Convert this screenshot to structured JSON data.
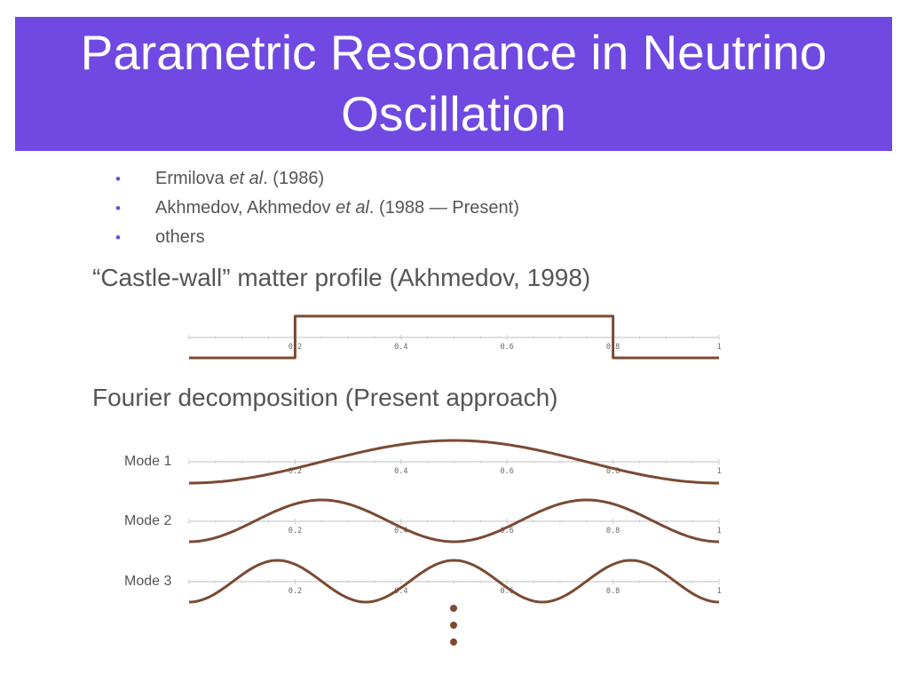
{
  "slide": {
    "title": "Parametric Resonance in Neutrino Oscillation",
    "bullets": [
      {
        "pre": "Ermilova ",
        "italic": "et al",
        "post": ". (1986)"
      },
      {
        "pre": "Akhmedov, Akhmedov ",
        "italic": "et al",
        "post": ". (1988 — Present)"
      },
      {
        "pre": "others",
        "italic": "",
        "post": ""
      }
    ],
    "castle_heading": "“Castle-wall” matter profile (Akhmedov, 1998)",
    "fourier_heading": "Fourier decomposition (Present approach)",
    "modes": [
      "Mode 1",
      "Mode 2",
      "Mode 3"
    ]
  },
  "chart_data": [
    {
      "type": "line",
      "description": "Castle-wall step profile",
      "x_ticks": [
        "0.2",
        "0.4",
        "0.6",
        "0.8",
        "1"
      ],
      "xlim": [
        0,
        1
      ],
      "series": [
        {
          "x": [
            0,
            0.2,
            0.2,
            0.8,
            0.8,
            1
          ],
          "y": [
            0,
            0,
            1,
            1,
            0,
            0
          ]
        }
      ],
      "color": "#7b4a32"
    },
    {
      "type": "line",
      "description": "Mode 1",
      "x_ticks": [
        "0.2",
        "0.4",
        "0.6",
        "0.8",
        "1"
      ],
      "xlim": [
        0,
        1
      ],
      "series": [
        {
          "function": "-cos(2*pi*1*x)",
          "x_range": [
            0,
            1
          ]
        }
      ],
      "color": "#7b4a32"
    },
    {
      "type": "line",
      "description": "Mode 2",
      "x_ticks": [
        "0.2",
        "0.4",
        "0.6",
        "0.8",
        "1"
      ],
      "xlim": [
        0,
        1
      ],
      "series": [
        {
          "function": "-cos(2*pi*2*x)",
          "x_range": [
            0,
            1
          ]
        }
      ],
      "color": "#7b4a32"
    },
    {
      "type": "line",
      "description": "Mode 3",
      "x_ticks": [
        "0.2",
        "0.4",
        "0.6",
        "0.8",
        "1"
      ],
      "xlim": [
        0,
        1
      ],
      "series": [
        {
          "function": "-cos(2*pi*3*x)",
          "x_range": [
            0,
            1
          ]
        }
      ],
      "color": "#7b4a32"
    }
  ],
  "ellipsis_dots": 3
}
